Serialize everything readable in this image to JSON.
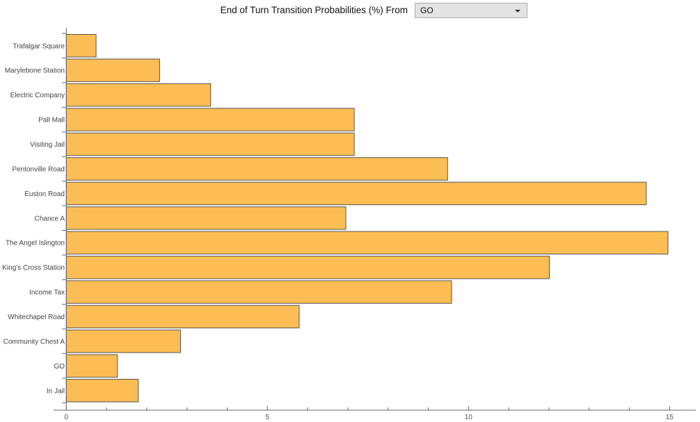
{
  "header": {
    "title": "End of Turn Transition Probabilities (%) From",
    "dropdown_value": "GO"
  },
  "chart_data": {
    "type": "bar",
    "orientation": "horizontal",
    "title": "End of Turn Transition Probabilities (%) From GO",
    "xlabel": "",
    "ylabel": "",
    "xlim": [
      0,
      15.7
    ],
    "x_ticks": [
      0,
      5,
      10,
      15
    ],
    "grid": false,
    "bar_color": "#fbbd54",
    "bar_edge_color": "#555555",
    "categories": [
      "Trafalgar Square",
      "Marylebone Station",
      "Electric Company",
      "Pall Mall",
      "Visiting Jail",
      "Pentonville Road",
      "Euston Road",
      "Chance A",
      "The Angel Islington",
      "King's Cross Station",
      "Income Tax",
      "Whitechapel Road",
      "Community Chest A",
      "GO",
      "In Jail"
    ],
    "values": [
      0.74,
      2.32,
      3.59,
      7.16,
      7.16,
      9.48,
      14.42,
      6.95,
      14.96,
      12.01,
      9.58,
      5.79,
      2.84,
      1.27,
      1.79
    ]
  }
}
